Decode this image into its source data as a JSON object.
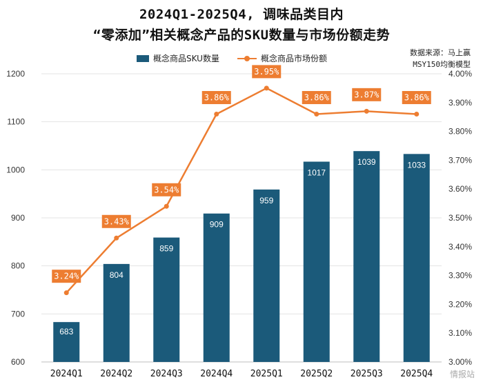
{
  "title_line1": "2024Q1-2025Q4, 调味品类目内",
  "title_line2": "“零添加”相关概念产品的SKU数量与市场份额走势",
  "source_line1": "数据来源：马上赢",
  "source_line2": "MSY150均衡模型",
  "watermark": "情报站",
  "colors": {
    "bar": "#1b5a7a",
    "line": "#ed7d31",
    "grid": "#e3e3e3"
  },
  "chart_data": {
    "type": "bar",
    "categories": [
      "2024Q1",
      "2024Q2",
      "2024Q3",
      "2024Q4",
      "2025Q1",
      "2025Q2",
      "2025Q3",
      "2025Q4"
    ],
    "series": [
      {
        "name": "概念商品SKU数量",
        "type": "bar",
        "axis": "left",
        "values": [
          683,
          804,
          859,
          909,
          959,
          1017,
          1039,
          1033
        ]
      },
      {
        "name": "概念商品市场份额",
        "type": "line",
        "axis": "right",
        "values": [
          3.24,
          3.43,
          3.54,
          3.86,
          3.95,
          3.86,
          3.87,
          3.86
        ],
        "labels": [
          "3.24%",
          "3.43%",
          "3.54%",
          "3.86%",
          "3.95%",
          "3.86%",
          "3.87%",
          "3.86%"
        ]
      }
    ],
    "y_left": {
      "min": 600,
      "max": 1200,
      "ticks": [
        600,
        700,
        800,
        900,
        1000,
        1100,
        1200
      ]
    },
    "y_right": {
      "min": 3.0,
      "max": 4.0,
      "ticks": [
        3.0,
        3.1,
        3.2,
        3.3,
        3.4,
        3.5,
        3.6,
        3.7,
        3.8,
        3.9,
        4.0
      ],
      "tick_labels": [
        "3.00%",
        "3.10%",
        "3.20%",
        "3.30%",
        "3.40%",
        "3.50%",
        "3.60%",
        "3.70%",
        "3.80%",
        "3.90%",
        "4.00%"
      ]
    },
    "grid": true,
    "legend_position": "top"
  }
}
